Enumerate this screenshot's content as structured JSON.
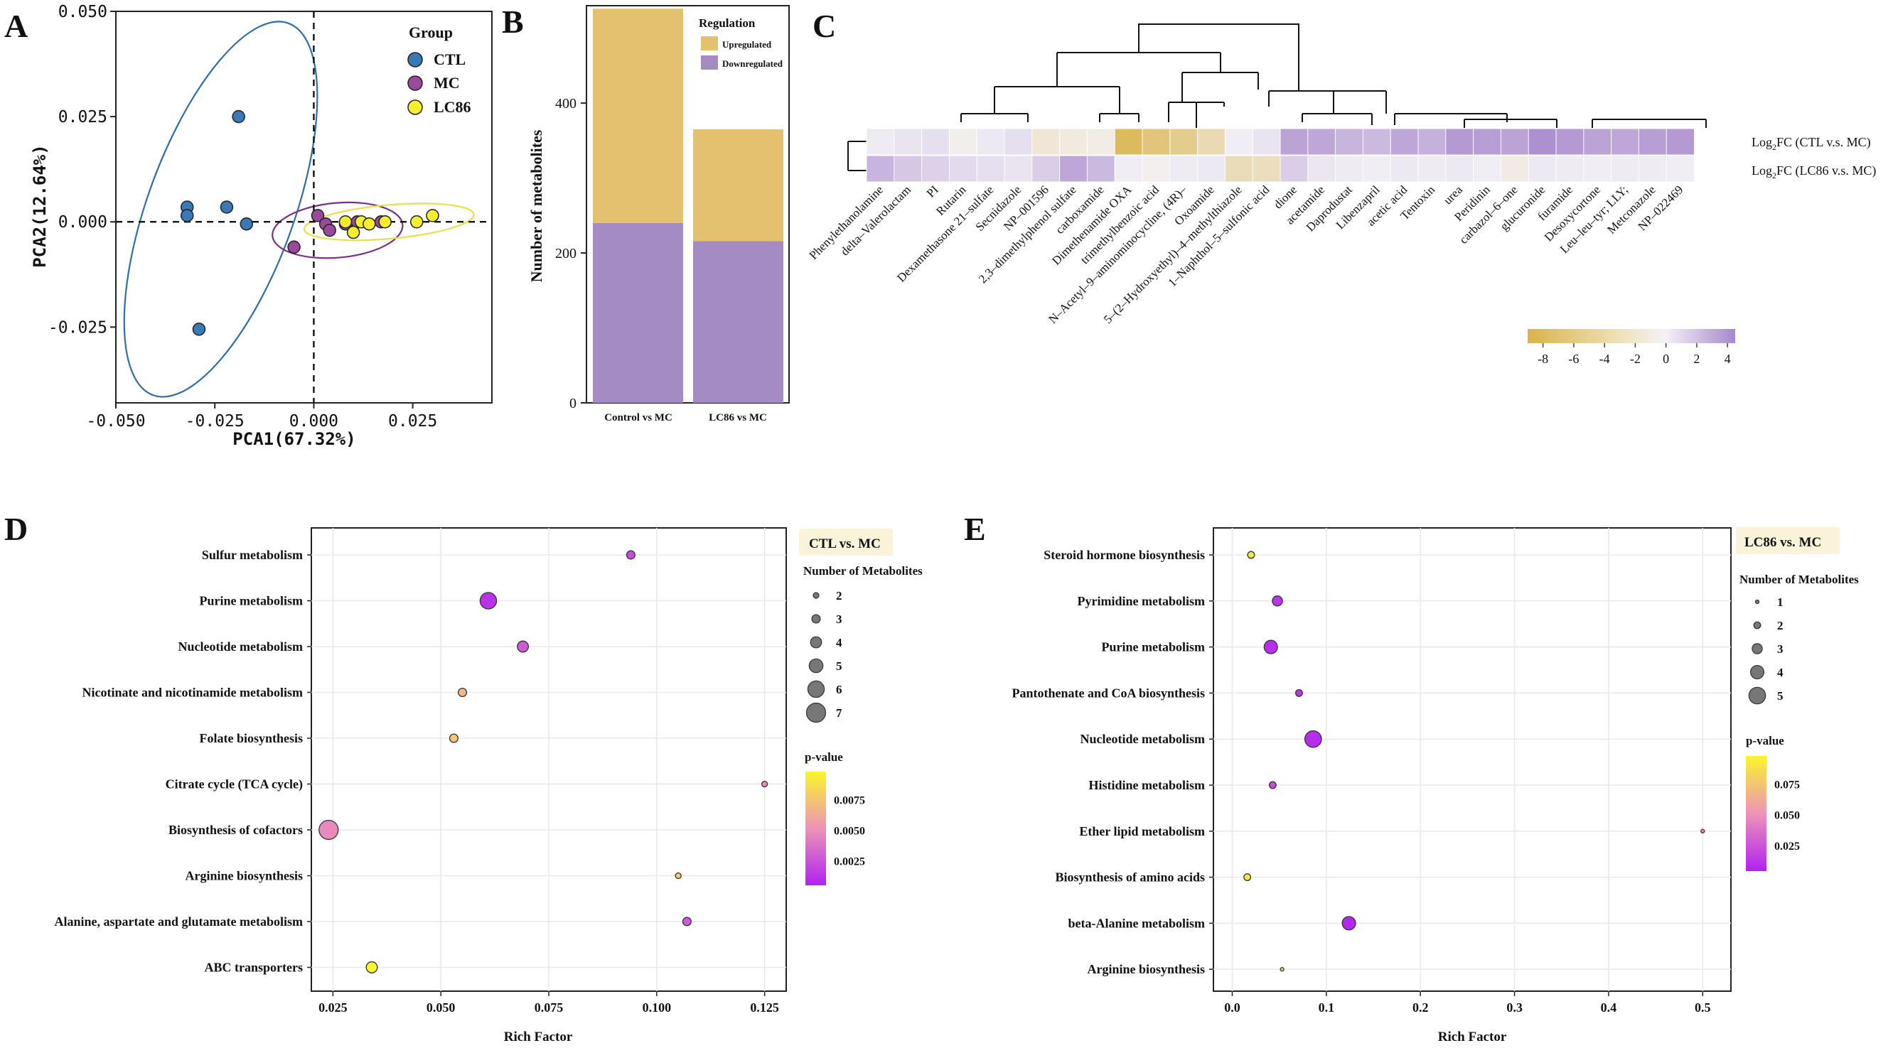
{
  "panels": {
    "A": "A",
    "B": "B",
    "C": "C",
    "D": "D",
    "E": "E"
  },
  "colors": {
    "CTL": "#3a78b6",
    "MC": "#9a4a9c",
    "LC86": "#f5ee2e",
    "upregulated": "#e3c16e",
    "downregulated": "#a48bc3",
    "ellipse_CTL": "#2e6fa6",
    "ellipse_MC": "#7b2f86",
    "ellipse_LC86": "#e6e24a",
    "heat_low": "#d9b44a",
    "heat_mid": "#f4f2f6",
    "heat_high": "#a889cc",
    "pv_low": "#b122f2",
    "pv_mid": "#ee93b9",
    "pv_high": "#faf52c"
  },
  "chart_data": [
    {
      "id": "A",
      "type": "scatter",
      "xlabel": "PCA1(67.32%)",
      "ylabel": "PCA2(12.64%)",
      "xlim": [
        -0.05,
        0.045
      ],
      "ylim": [
        -0.043,
        0.05
      ],
      "xticks": [
        -0.05,
        -0.025,
        0.0,
        0.025
      ],
      "xtick_labels": [
        "-0.050",
        "-0.025",
        "0.000",
        "0.025"
      ],
      "yticks": [
        -0.025,
        0.0,
        0.025,
        0.05
      ],
      "ytick_labels": [
        "-0.025",
        "0.000",
        "0.025",
        "0.050"
      ],
      "legend_title": "Group",
      "legend_position": "top-right",
      "series": [
        {
          "name": "CTL",
          "x": [
            -0.032,
            -0.032,
            -0.022,
            -0.019,
            -0.017,
            -0.029
          ],
          "y": [
            0.0035,
            0.0015,
            0.0035,
            0.025,
            -0.0005,
            -0.0255
          ]
        },
        {
          "name": "MC",
          "x": [
            -0.005,
            0.001,
            0.003,
            0.004,
            0.011,
            0.017,
            0.008
          ],
          "y": [
            -0.006,
            0.0015,
            -0.0005,
            -0.002,
            0.0,
            0.0,
            -0.0005
          ]
        },
        {
          "name": "LC86",
          "x": [
            0.008,
            0.01,
            0.012,
            0.018,
            0.026,
            0.03,
            0.014
          ],
          "y": [
            0.0,
            -0.0025,
            0.0,
            0.0,
            0.0,
            0.0015,
            -0.0005
          ]
        }
      ],
      "ellipses": [
        {
          "group": "CTL",
          "cx": -0.0235,
          "cy": 0.003,
          "rx": 0.0185,
          "ry": 0.047,
          "angle_deg": 20
        },
        {
          "group": "MC",
          "cx": 0.006,
          "cy": -0.002,
          "rx": 0.0165,
          "ry": 0.0065,
          "angle_deg": -5
        },
        {
          "group": "LC86",
          "cx": 0.019,
          "cy": 0.0,
          "rx": 0.0215,
          "ry": 0.004,
          "angle_deg": -5
        }
      ]
    },
    {
      "id": "B",
      "type": "bar",
      "stacked": true,
      "ylabel": "Number of metabolites",
      "categories": [
        "Control vs MC",
        "LC86 vs MC"
      ],
      "ylim": [
        0,
        530
      ],
      "yticks": [
        0,
        200,
        400
      ],
      "legend_title": "Regulation",
      "legend_position": "top-right",
      "series": [
        {
          "name": "Downregulated",
          "values": [
            240,
            216
          ]
        },
        {
          "name": "Upregulated",
          "values": [
            286,
            149
          ]
        }
      ]
    },
    {
      "id": "C",
      "type": "heatmap",
      "rows": [
        "Log₂FC (CTL v.s. MC)",
        "Log₂FC (LC86 v.s. MC)"
      ],
      "columns": [
        "Phenylethanolamine",
        "delta–Valerolactam",
        "PI",
        "Rutarin",
        "Dexamethasone 21–sulfate",
        "Secnidazole",
        "NP–001596",
        "2,3–dimethylphenol sulfate",
        "carboxamide",
        "Dimethenamide OXA",
        "trimethylbenzoic acid",
        "N–Acetyl–9–aminominocycline, (4R)–",
        "Oxoamide",
        "5–(2–Hydroxyethyl)–4–methylthiazole",
        "1–Naphthol–5–sulfonic acid",
        "dione",
        "acetamide",
        "Daprodustat",
        "Libenzapril",
        "acetic acid",
        "Tentoxin",
        "urea",
        "Peridinin",
        "carbazol–6–one",
        "glucuronide",
        "furamide",
        "Desoxycortone",
        "Leu–leu–tyr; LLY;",
        "Metconazole",
        "NP–022469"
      ],
      "values": [
        [
          0.3,
          0.6,
          0.8,
          -0.6,
          0.4,
          0.8,
          -1.8,
          -1.2,
          -0.8,
          -8.0,
          -6.5,
          -5.5,
          -3.5,
          0.2,
          0.6,
          3.4,
          3.2,
          2.6,
          2.4,
          3.2,
          2.8,
          3.8,
          3.6,
          3.4,
          4.2,
          3.8,
          3.4,
          3.2,
          3.6,
          3.8
        ],
        [
          2.6,
          1.8,
          1.4,
          1.0,
          0.8,
          0.6,
          1.6,
          3.2,
          2.4,
          0.2,
          -0.4,
          0.3,
          0.4,
          -3.2,
          -3.0,
          1.6,
          0.5,
          0.3,
          0.2,
          0.4,
          0.3,
          0.4,
          0.2,
          -1.0,
          0.4,
          0.3,
          0.2,
          0.3,
          0.3,
          0.2
        ]
      ],
      "colorbar_ticks": [
        -8,
        -6,
        -4,
        -2,
        0,
        2,
        4
      ],
      "colorbar_labels": [
        "-8",
        "-6",
        "-4",
        "-2",
        "0",
        "2",
        "4"
      ],
      "clim": [
        -9,
        4.5
      ]
    },
    {
      "id": "D",
      "type": "scatter",
      "subtype": "bubble",
      "legend_label": "CTL vs. MC",
      "xlabel": "Rich Factor",
      "xlim": [
        0.02,
        0.13
      ],
      "xticks": [
        0.025,
        0.05,
        0.075,
        0.1,
        0.125
      ],
      "xtick_labels": [
        "0.025",
        "0.050",
        "0.075",
        "0.100",
        "0.125"
      ],
      "pathways": [
        "Sulfur metabolism",
        "Purine metabolism",
        "Nucleotide metabolism",
        "Nicotinate and nicotinamide metabolism",
        "Folate biosynthesis",
        "Citrate cycle (TCA cycle)",
        "Biosynthesis of cofactors",
        "Arginine biosynthesis",
        "Alanine, aspartate and glutamate metabolism",
        "ABC transporters"
      ],
      "rich_factor": [
        0.094,
        0.061,
        0.069,
        0.055,
        0.053,
        0.125,
        0.024,
        0.105,
        0.107,
        0.034
      ],
      "count": [
        3,
        6,
        4,
        3,
        3,
        2,
        7,
        2,
        3,
        4
      ],
      "pvalue": [
        0.0022,
        0.0012,
        0.0028,
        0.0068,
        0.0075,
        0.0048,
        0.0048,
        0.0078,
        0.0028,
        0.0098
      ],
      "size_legend_title": "Number of Metabolites",
      "size_legend": [
        2,
        3,
        4,
        5,
        6,
        7
      ],
      "color_legend_title": "p-value",
      "color_ticks": [
        "0.0075",
        "0.0050",
        "0.0025"
      ],
      "color_tick_values": [
        0.0075,
        0.005,
        0.0025
      ],
      "color_range": [
        0.0005,
        0.0098
      ]
    },
    {
      "id": "E",
      "type": "scatter",
      "subtype": "bubble",
      "legend_label": "LC86 vs. MC",
      "xlabel": "Rich Factor",
      "xlim": [
        -0.02,
        0.53
      ],
      "xticks": [
        0.0,
        0.1,
        0.2,
        0.3,
        0.4,
        0.5
      ],
      "xtick_labels": [
        "0.0",
        "0.1",
        "0.2",
        "0.3",
        "0.4",
        "0.5"
      ],
      "pathways": [
        "Steroid hormone biosynthesis",
        "Pyrimidine metabolism",
        "Purine metabolism",
        "Pantothenate and CoA biosynthesis",
        "Nucleotide metabolism",
        "Histidine metabolism",
        "Ether lipid metabolism",
        "Biosynthesis of amino acids",
        "beta-Alanine metabolism",
        "Arginine biosynthesis"
      ],
      "rich_factor": [
        0.02,
        0.048,
        0.041,
        0.071,
        0.086,
        0.043,
        0.5,
        0.016,
        0.124,
        0.053
      ],
      "count": [
        2,
        3,
        4,
        2,
        5,
        2,
        1,
        2,
        4,
        1
      ],
      "pvalue": [
        0.09,
        0.012,
        0.01,
        0.012,
        0.008,
        0.022,
        0.05,
        0.092,
        0.006,
        0.08
      ],
      "size_legend_title": "Number of Metabolites",
      "size_legend": [
        1,
        2,
        3,
        4,
        5
      ],
      "color_legend_title": "p-value",
      "color_ticks": [
        "0.075",
        "0.050",
        "0.025"
      ],
      "color_tick_values": [
        0.075,
        0.05,
        0.025
      ],
      "color_range": [
        0.004,
        0.098
      ]
    }
  ]
}
